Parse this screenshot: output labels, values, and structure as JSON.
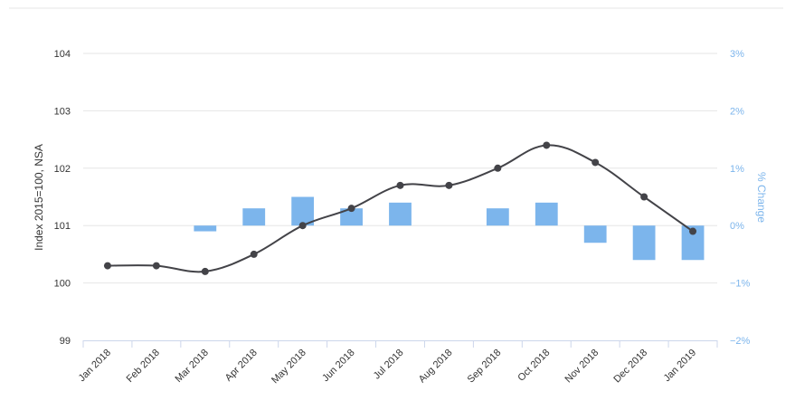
{
  "chart_data": {
    "type": "bar+line",
    "categories": [
      "Jan 2018",
      "Feb 2018",
      "Mar 2018",
      "Apr 2018",
      "May 2018",
      "Jun 2018",
      "Jul 2018",
      "Aug 2018",
      "Sep 2018",
      "Oct 2018",
      "Nov 2018",
      "Dec 2018",
      "Jan 2019"
    ],
    "series": [
      {
        "type": "line",
        "axis": "left",
        "values": [
          100.3,
          100.3,
          100.2,
          100.5,
          101.0,
          101.3,
          101.7,
          101.7,
          102.0,
          102.4,
          102.1,
          101.5,
          100.9
        ],
        "color": "#434348"
      },
      {
        "type": "bar",
        "axis": "right",
        "values": [
          0.0,
          0.0,
          -0.1,
          0.3,
          0.5,
          0.3,
          0.4,
          0.0,
          0.3,
          0.4,
          -0.3,
          -0.6,
          -0.6
        ],
        "color": "#7cb5ec"
      }
    ],
    "ylabel": "Index 2015=100, NSA",
    "ylabel_right": "% Change",
    "ylim": [
      99,
      104
    ],
    "ylim_right": [
      -2,
      3
    ],
    "y_ticks": [
      "99",
      "100",
      "101",
      "102",
      "103",
      "104"
    ],
    "y_ticks_right": [
      "−2%",
      "−1%",
      "0%",
      "1%",
      "2%",
      "3%"
    ],
    "grid": true,
    "colors": {
      "right_axis": "#7cb5ec",
      "left_axis": "#333333",
      "grid": "#e6e6e6"
    }
  }
}
